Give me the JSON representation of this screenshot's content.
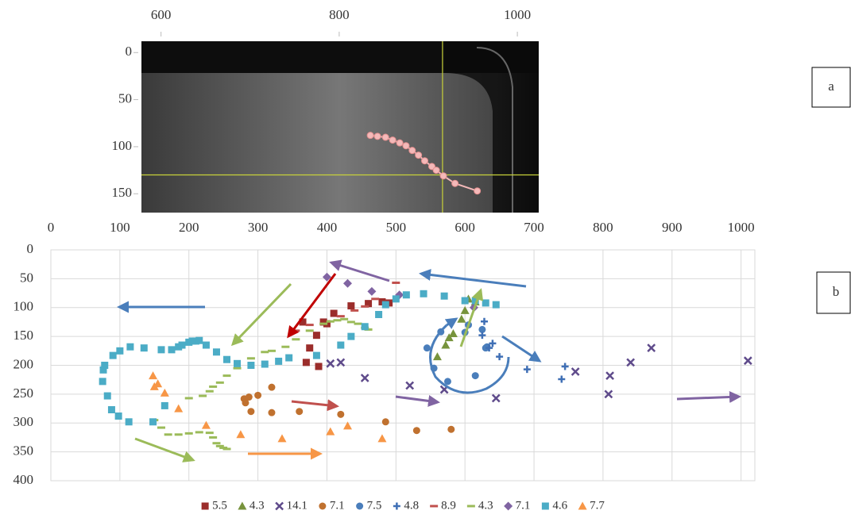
{
  "chart_data": [
    {
      "type": "image-scatter",
      "panel_label": "a",
      "xlim": [
        578,
        1024
      ],
      "ylim": [
        -12,
        170
      ],
      "y_inverted": true,
      "xticks": [
        600,
        800,
        1000
      ],
      "yticks": [
        0,
        50,
        100,
        150
      ],
      "crosshair": {
        "x": 916,
        "y": 130,
        "color": "#c8d23a"
      },
      "series": [
        {
          "color": "#f4b9b9",
          "x": [
            835,
            843,
            852,
            860,
            868,
            875,
            882,
            889,
            896,
            904,
            909,
            917,
            930,
            955
          ],
          "values": [
            88,
            89,
            90,
            93,
            96,
            99,
            104,
            109,
            115,
            121,
            125,
            131,
            139,
            147
          ]
        }
      ]
    },
    {
      "type": "scatter",
      "panel_label": "b",
      "xlim": [
        0,
        1020
      ],
      "ylim": [
        0,
        400
      ],
      "y_inverted": true,
      "grid": true,
      "xticks": [
        0,
        100,
        200,
        300,
        400,
        500,
        600,
        700,
        800,
        900,
        1000
      ],
      "yticks": [
        0,
        50,
        100,
        150,
        200,
        250,
        300,
        350,
        400
      ],
      "legend": "bottom",
      "series": [
        {
          "name": "5.5",
          "marker": "square",
          "color": "#9b2d2b",
          "x": [
            365,
            370,
            375,
            385,
            388,
            395,
            400,
            410,
            435,
            460,
            480,
            490
          ],
          "values": [
            125,
            195,
            170,
            148,
            202,
            125,
            128,
            110,
            97,
            93,
            90,
            92
          ]
        },
        {
          "name": "4.3",
          "marker": "triangle",
          "color": "#77933c",
          "x": [
            560,
            572,
            577,
            583,
            595,
            600,
            605,
            615
          ],
          "values": [
            185,
            165,
            152,
            145,
            120,
            105,
            85,
            90
          ]
        },
        {
          "name": "14.1",
          "marker": "x",
          "color": "#5f4b8b",
          "x": [
            405,
            420,
            455,
            520,
            570,
            645,
            760,
            808,
            810,
            840,
            870,
            1010
          ],
          "values": [
            197,
            195,
            222,
            235,
            242,
            257,
            211,
            250,
            218,
            195,
            170,
            192
          ]
        },
        {
          "name": "7.1",
          "marker": "circle",
          "color": "#c0712f",
          "x": [
            280,
            282,
            287,
            290,
            300,
            320,
            320,
            360,
            420,
            485,
            530,
            580
          ],
          "values": [
            258,
            265,
            255,
            280,
            252,
            238,
            282,
            280,
            285,
            298,
            313,
            311
          ]
        },
        {
          "name": "7.5",
          "marker": "circle",
          "color": "#4a7ebb",
          "x": [
            545,
            555,
            565,
            575,
            600,
            605,
            615,
            625,
            630,
            632
          ],
          "values": [
            170,
            205,
            142,
            228,
            143,
            130,
            218,
            138,
            170,
            168
          ]
        },
        {
          "name": "4.8",
          "marker": "plus",
          "color": "#3f6fb5",
          "x": [
            625,
            628,
            635,
            640,
            650,
            690,
            740,
            745
          ],
          "values": [
            148,
            124,
            170,
            162,
            185,
            207,
            224,
            202
          ]
        },
        {
          "name": "8.9",
          "marker": "dash",
          "color": "#c0504d",
          "x": [
            355,
            375,
            420,
            440,
            455,
            470,
            500
          ],
          "values": [
            140,
            130,
            115,
            105,
            98,
            85,
            57
          ]
        },
        {
          "name": "4.3",
          "marker": "dash",
          "color": "#9bbb59",
          "x": [
            150,
            160,
            170,
            185,
            200,
            215,
            230,
            235,
            240,
            245,
            250,
            255,
            200,
            220,
            230,
            235,
            245,
            255,
            270,
            290,
            310,
            320,
            340,
            355,
            375,
            395,
            405,
            415,
            425,
            435,
            445,
            455,
            460
          ],
          "values": [
            295,
            308,
            320,
            320,
            318,
            316,
            317,
            325,
            335,
            340,
            343,
            345,
            257,
            253,
            245,
            237,
            230,
            218,
            205,
            188,
            177,
            175,
            168,
            155,
            140,
            128,
            124,
            122,
            120,
            125,
            128,
            135,
            138
          ]
        },
        {
          "name": "7.1",
          "marker": "diamond",
          "color": "#8064a2",
          "x": [
            400,
            430,
            465,
            505,
            613
          ],
          "values": [
            47,
            58,
            72,
            78,
            100
          ]
        },
        {
          "name": "4.6",
          "marker": "square",
          "color": "#4bacc6",
          "x": [
            75,
            76,
            78,
            82,
            88,
            98,
            113,
            148,
            165,
            90,
            100,
            115,
            135,
            160,
            175,
            185,
            190,
            200,
            205,
            210,
            215,
            225,
            240,
            255,
            270,
            290,
            310,
            330,
            345,
            385,
            420,
            435,
            455,
            475,
            485,
            500,
            515,
            540,
            570,
            600,
            615,
            630,
            645
          ],
          "values": [
            228,
            208,
            200,
            253,
            277,
            288,
            298,
            298,
            270,
            183,
            175,
            168,
            170,
            173,
            173,
            168,
            165,
            160,
            158,
            158,
            157,
            165,
            177,
            190,
            197,
            200,
            198,
            193,
            187,
            183,
            165,
            150,
            133,
            112,
            95,
            85,
            78,
            76,
            80,
            88,
            88,
            92,
            95
          ]
        },
        {
          "name": "7.7",
          "marker": "triangle",
          "color": "#f79646",
          "x": [
            148,
            150,
            155,
            165,
            185,
            225,
            275,
            335,
            405,
            430,
            480
          ],
          "values": [
            218,
            237,
            232,
            248,
            275,
            304,
            320,
            327,
            315,
            305,
            327
          ]
        }
      ]
    }
  ]
}
